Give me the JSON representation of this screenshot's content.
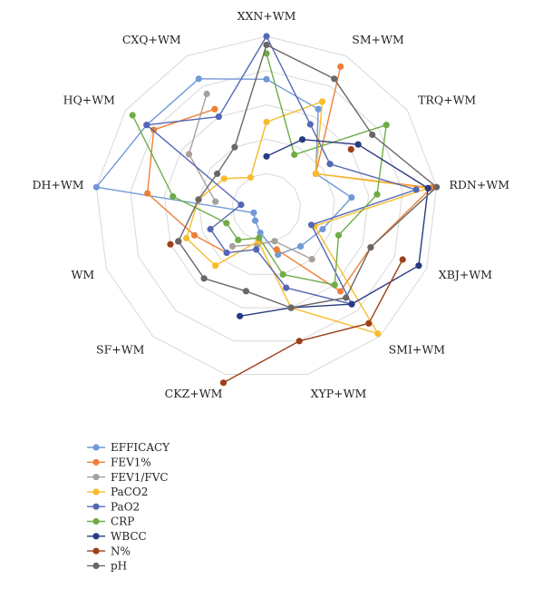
{
  "chart_data": {
    "type": "radar",
    "title": "",
    "axes": [
      "XXN+WM",
      "SM+WM",
      "TRQ+WM",
      "RDN+WM",
      "XBJ+WM",
      "SMI+WM",
      "XYP+WM",
      "CKZ+WM",
      "SF+WM",
      "WM",
      "DH+WM",
      "HQ+WM",
      "CXQ+WM"
    ],
    "range": [
      0,
      1
    ],
    "grid": true,
    "legend_position": "bottom-left",
    "series": [
      {
        "name": "EFFICACY",
        "color": "#7099d6",
        "values": [
          0.75,
          0.65,
          0.35,
          0.5,
          0.35,
          0.3,
          0.28,
          0.15,
          0.1,
          0.08,
          1.0,
          0.85,
          0.85
        ]
      },
      {
        "name": "FEV1%",
        "color": "#ef7f36",
        "values": [
          null,
          0.93,
          0.35,
          0.97,
          0.65,
          0.65,
          0.25,
          null,
          0.35,
          0.45,
          0.7,
          0.8,
          0.65
        ]
      },
      {
        "name": "FEV1/FVC",
        "color": "#a8a09a",
        "values": [
          null,
          null,
          null,
          null,
          null,
          0.4,
          0.2,
          0.22,
          0.3,
          null,
          0.3,
          0.55,
          0.75
        ]
      },
      {
        "name": "PaCO2",
        "color": "#f7bc2d",
        "values": [
          0.5,
          0.7,
          0.35,
          0.95,
          0.3,
          0.98,
          0.6,
          0.2,
          0.45,
          0.5,
          0.4,
          0.3,
          0.2
        ]
      },
      {
        "name": "PaO2",
        "color": "#5467b5",
        "values": [
          1.0,
          0.55,
          0.45,
          0.88,
          0.28,
          0.75,
          0.48,
          0.25,
          0.35,
          0.35,
          0.15,
          0.85,
          0.6
        ]
      },
      {
        "name": "CRP",
        "color": "#6fac46",
        "values": [
          0.9,
          0.35,
          0.85,
          0.65,
          0.45,
          0.6,
          0.4,
          0.18,
          0.25,
          0.25,
          0.55,
          0.95,
          null
        ]
      },
      {
        "name": "WBCC",
        "color": "#283a82",
        "values": [
          0.3,
          0.45,
          0.65,
          0.95,
          0.95,
          0.75,
          0.6,
          0.65,
          null,
          0.55,
          null,
          null,
          null
        ]
      },
      {
        "name": "N%",
        "color": "#9e4018",
        "values": [
          null,
          null,
          0.6,
          null,
          0.85,
          0.9,
          0.8,
          1.05,
          null,
          0.6,
          null,
          null,
          null
        ]
      },
      {
        "name": "pH",
        "color": "#6b6766",
        "values": [
          0.95,
          0.85,
          0.75,
          1.0,
          0.65,
          0.7,
          0.6,
          0.5,
          0.55,
          0.55,
          0.4,
          0.35,
          0.4
        ]
      }
    ]
  }
}
